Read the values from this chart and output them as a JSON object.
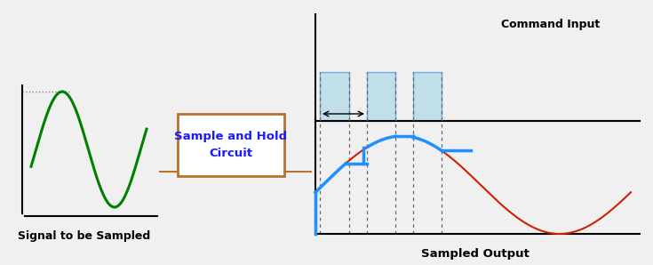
{
  "bg_color": "#f0f0f0",
  "title_color": "#000000",
  "signal_color": "#008000",
  "box_edge_color": "#b8732a",
  "box_text_color": "#1a1aff",
  "box_text": "Sample and Hold\nCircuit",
  "label_signal": "Signal to be Sampled",
  "label_output": "Sampled Output",
  "label_command": "Command Input",
  "cmd_pulse_color": "#add8e6",
  "cmd_pulse_edge": "#4a90d9",
  "output_curve_color": "#1e90ff",
  "output_sine_color": "#cc2200",
  "dashed_color": "#666666",
  "axis_color": "#000000",
  "dotted_color": "#888888"
}
